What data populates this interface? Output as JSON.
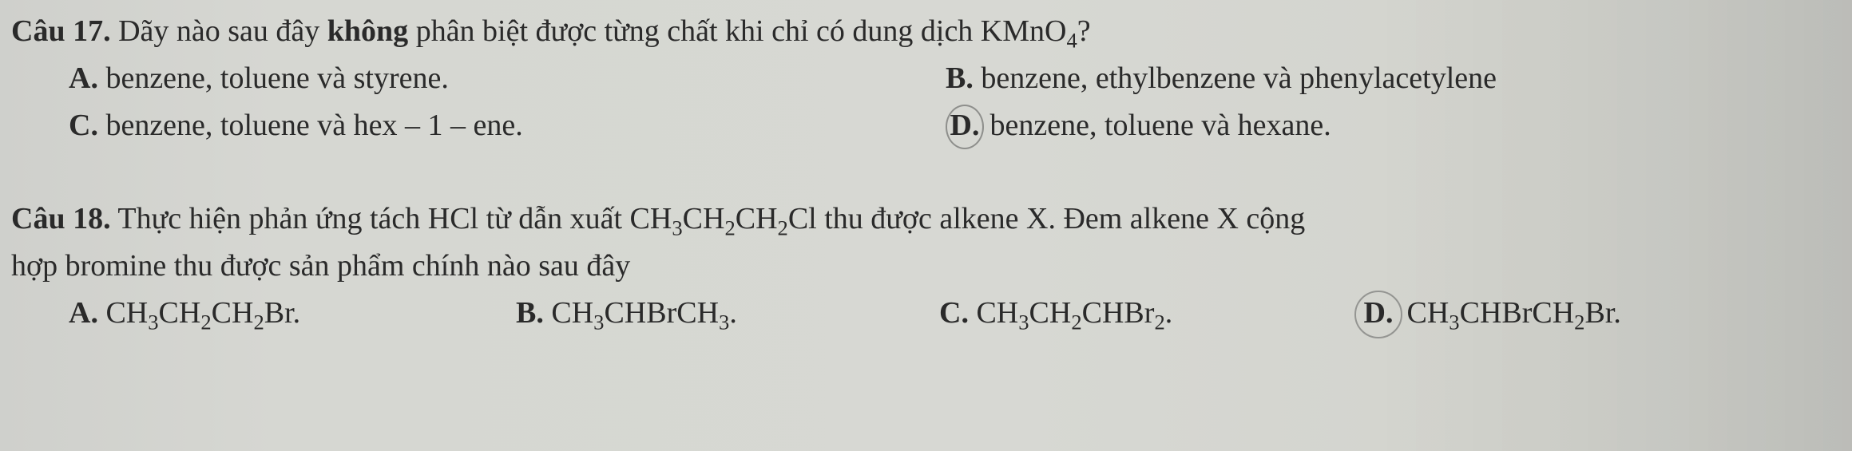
{
  "q17": {
    "label": "Câu 17.",
    "stem_before": "Dãy nào sau đây ",
    "keyword": "không",
    "stem_after": " phân biệt được từng chất khi chỉ có dung dịch KMnO",
    "stem_sub": "4",
    "stem_end": "?",
    "options": {
      "A": {
        "letter": "A.",
        "text": "benzene, toluene và styrene."
      },
      "B": {
        "letter": "B.",
        "text": "benzene, ethylbenzene và phenylacetylene"
      },
      "C": {
        "letter": "C.",
        "text": "benzene, toluene và hex – 1 – ene."
      },
      "D": {
        "letter": "D.",
        "text": "benzene, toluene và hexane."
      }
    }
  },
  "q18": {
    "label": "Câu 18.",
    "stem_l1_a": "Thực hiện phản ứng tách HCl từ dẫn xuất CH",
    "stem_l1_s1": "3",
    "stem_l1_b": "CH",
    "stem_l1_s2": "2",
    "stem_l1_c": "CH",
    "stem_l1_s3": "2",
    "stem_l1_d": "Cl thu được alkene X. Đem alkene X cộng",
    "stem_l2": "hợp bromine thu được sản phẩm chính nào sau đây",
    "options": {
      "A": {
        "letter": "A.",
        "p1": "CH",
        "s1": "3",
        "p2": "CH",
        "s2": "2",
        "p3": "CH",
        "s3": "2",
        "p4": "Br."
      },
      "B": {
        "letter": "B.",
        "p1": "CH",
        "s1": "3",
        "p2": "CHBrCH",
        "s2": "3",
        "p3": "."
      },
      "C": {
        "letter": "C.",
        "p1": "CH",
        "s1": "3",
        "p2": "CH",
        "s2": "2",
        "p3": "CHBr",
        "s3": "2",
        "p4": "."
      },
      "D": {
        "letter": "D.",
        "p1": "CH",
        "s1": "3",
        "p2": "CHBrCH",
        "s2": "2",
        "p3": "Br."
      }
    }
  }
}
